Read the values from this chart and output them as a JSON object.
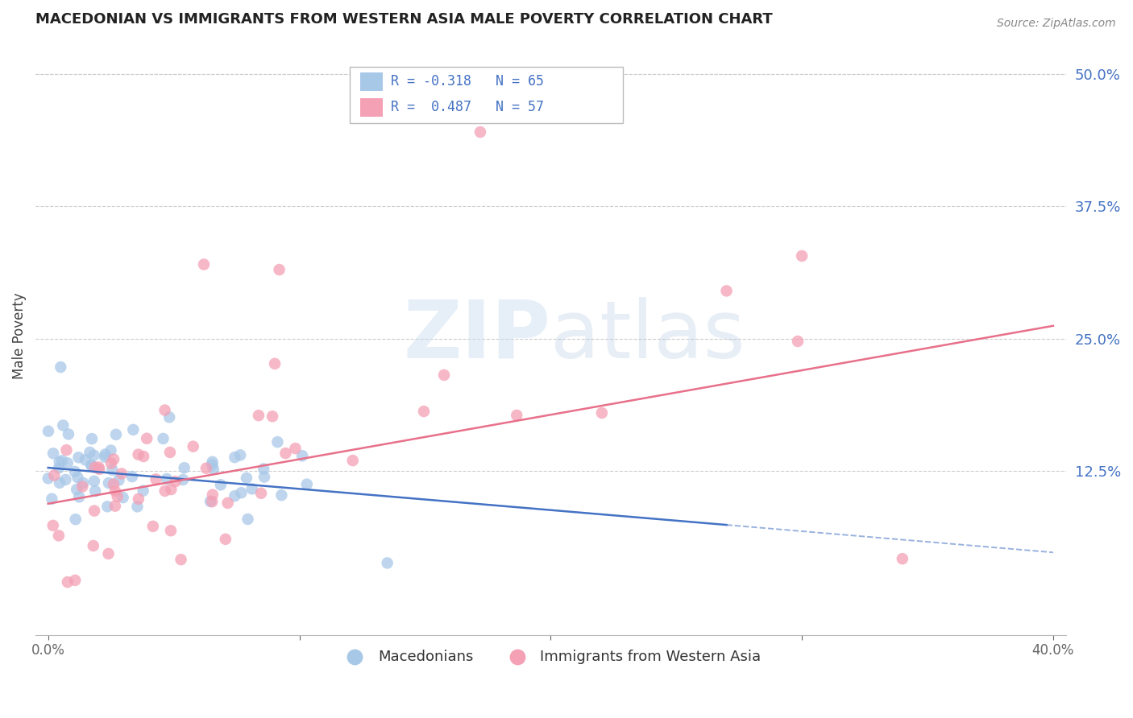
{
  "title": "MACEDONIAN VS IMMIGRANTS FROM WESTERN ASIA MALE POVERTY CORRELATION CHART",
  "source": "Source: ZipAtlas.com",
  "ylabel": "Male Poverty",
  "right_yticks": [
    "50.0%",
    "37.5%",
    "25.0%",
    "12.5%"
  ],
  "right_ytick_values": [
    0.5,
    0.375,
    0.25,
    0.125
  ],
  "xlim": [
    -0.005,
    0.405
  ],
  "ylim": [
    -0.03,
    0.535
  ],
  "macedonian_color": "#a8c8e8",
  "immigrants_color": "#f4a0b5",
  "macedonian_line_color": "#4472c4",
  "immigrants_line_color": "#e8708a",
  "background_color": "#ffffff",
  "grid_color": "#cccccc",
  "watermark_color": "#c8ddf0",
  "right_tick_color": "#4472c4",
  "title_color": "#222222",
  "source_color": "#888888",
  "legend_r1_text": "R = -0.318   N = 65",
  "legend_r2_text": "R =  0.487   N = 57"
}
